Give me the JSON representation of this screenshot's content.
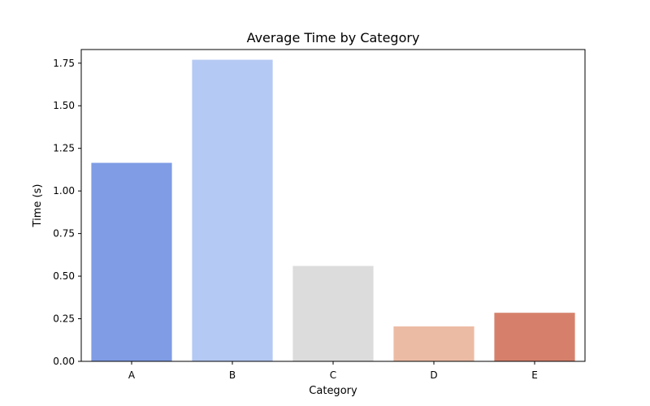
{
  "chart_data": {
    "type": "bar",
    "title": "Average Time by Category",
    "xlabel": "Category",
    "ylabel": "Time (s)",
    "categories": [
      "A",
      "B",
      "C",
      "D",
      "E"
    ],
    "values": [
      1.165,
      1.77,
      0.56,
      0.205,
      0.285
    ],
    "colors": [
      "#7f9ce5",
      "#b4c9f3",
      "#dcdcdc",
      "#ecbba4",
      "#d6806b"
    ],
    "ylim": [
      0,
      1.83
    ],
    "yticks": [
      0.0,
      0.25,
      0.5,
      0.75,
      1.0,
      1.25,
      1.5,
      1.75
    ],
    "ytick_labels": [
      "0.00",
      "0.25",
      "0.50",
      "0.75",
      "1.00",
      "1.25",
      "1.50",
      "1.75"
    ],
    "grid": false,
    "legend": "none"
  }
}
